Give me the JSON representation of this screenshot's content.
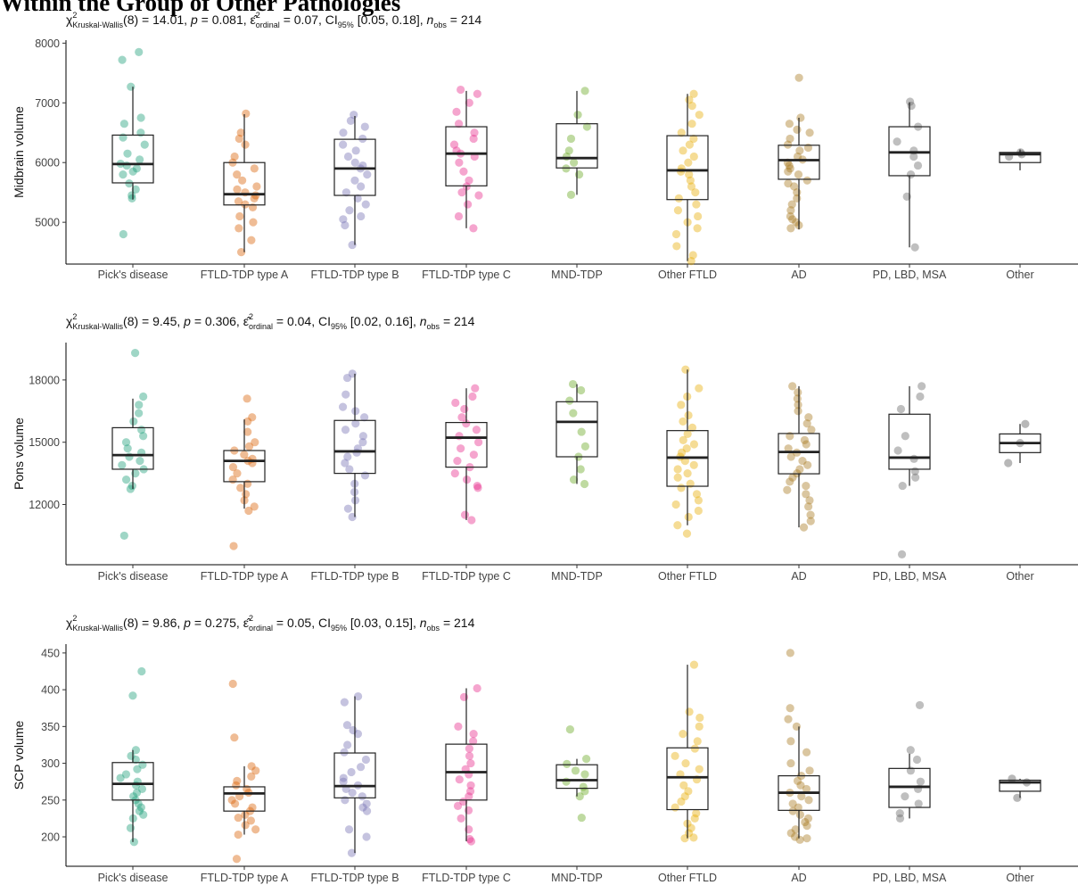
{
  "figure": {
    "title": "Within the Group of Other Pathologies"
  },
  "chart_data": [
    {
      "type": "box",
      "ylabel": "Midbrain volume",
      "ylim": [
        4300,
        8050
      ],
      "yticks": [
        5000,
        6000,
        7000,
        8000
      ],
      "subtitle": {
        "chi_base": "χ",
        "chi_sup": "2",
        "chi_sub": "Kruskal-Wallis",
        "dof_text": "(8) = 14.01, ",
        "p_symbol": "p",
        "p_text": " = 0.081, ",
        "eps_symbol": "ε̂",
        "eps_sup": "2",
        "eps_sub": "ordinal",
        "eps_text": " = 0.07, CI",
        "ci_sub": "95%",
        "ci_text": " [0.05, 0.18], ",
        "n_symbol": "n",
        "n_sub": "obs",
        "n_text": " = 214"
      },
      "categories": [
        "Pick's disease",
        "FTLD-TDP type A",
        "FTLD-TDP type B",
        "FTLD-TDP type C",
        "MND-TDP",
        "Other FTLD",
        "AD",
        "PD, LBD, MSA",
        "Other"
      ],
      "colors": [
        "#1b9e77",
        "#d95f02",
        "#7570b3",
        "#e7298a",
        "#66a61e",
        "#e6ab02",
        "#a6761d",
        "#666666",
        "#555555"
      ],
      "boxes": [
        {
          "q1": 5660,
          "median": 5975,
          "q3": 6460,
          "whisker_low": 5380,
          "whisker_high": 7270
        },
        {
          "q1": 5290,
          "median": 5470,
          "q3": 6000,
          "whisker_low": 4500,
          "whisker_high": 6810
        },
        {
          "q1": 5450,
          "median": 5900,
          "q3": 6390,
          "whisker_low": 4620,
          "whisker_high": 6780
        },
        {
          "q1": 5610,
          "median": 6150,
          "q3": 6600,
          "whisker_low": 4900,
          "whisker_high": 7200
        },
        {
          "q1": 5910,
          "median": 6075,
          "q3": 6650,
          "whisker_low": 5460,
          "whisker_high": 7200
        },
        {
          "q1": 5380,
          "median": 5870,
          "q3": 6450,
          "whisker_low": 4350,
          "whisker_high": 7150
        },
        {
          "q1": 5720,
          "median": 6040,
          "q3": 6290,
          "whisker_low": 4880,
          "whisker_high": 6750
        },
        {
          "q1": 5780,
          "median": 6170,
          "q3": 6600,
          "whisker_low": 4580,
          "whisker_high": 7010
        },
        {
          "q1": 6000,
          "median": 6140,
          "q3": 6170,
          "whisker_low": 5870,
          "whisker_high": 6220
        }
      ],
      "points": [
        [
          7850,
          7720,
          7270,
          6750,
          6650,
          6500,
          6420,
          6300,
          6150,
          6050,
          5980,
          5950,
          5900,
          5850,
          5800,
          5650,
          5550,
          5450,
          5400,
          4800
        ],
        [
          6820,
          6500,
          6400,
          6300,
          6100,
          6000,
          5900,
          5800,
          5700,
          5600,
          5550,
          5500,
          5450,
          5400,
          5350,
          5300,
          5250,
          5100,
          5000,
          4900,
          4700,
          4500
        ],
        [
          6800,
          6700,
          6600,
          6500,
          6400,
          6300,
          6200,
          6100,
          6000,
          5950,
          5900,
          5800,
          5700,
          5600,
          5500,
          5400,
          5300,
          5200,
          5100,
          5050,
          4950,
          4620
        ],
        [
          7220,
          7150,
          7000,
          6850,
          6650,
          6500,
          6400,
          6300,
          6200,
          6150,
          6100,
          6000,
          5850,
          5700,
          5600,
          5500,
          5450,
          5300,
          5100,
          4900
        ],
        [
          7200,
          6800,
          6600,
          6400,
          6200,
          6100,
          6000,
          5900,
          5800,
          5460
        ],
        [
          7150,
          7050,
          6950,
          6800,
          6650,
          6500,
          6400,
          6300,
          6200,
          6100,
          6000,
          5900,
          5850,
          5800,
          5700,
          5600,
          5500,
          5400,
          5300,
          5200,
          5100,
          5000,
          4900,
          4800,
          4600,
          4450,
          4350
        ],
        [
          7420,
          6750,
          6650,
          6550,
          6500,
          6400,
          6300,
          6250,
          6200,
          6100,
          6050,
          6000,
          5950,
          5900,
          5850,
          5800,
          5700,
          5650,
          5600,
          5500,
          5400,
          5300,
          5200,
          5100,
          5050,
          5000,
          4950,
          4900
        ],
        [
          7020,
          6950,
          6600,
          6350,
          6200,
          6100,
          5950,
          5800,
          5430,
          4580
        ],
        [
          6170,
          6140,
          6100
        ]
      ]
    },
    {
      "type": "box",
      "ylabel": "Pons volume",
      "ylim": [
        9100,
        19800
      ],
      "yticks": [
        12000,
        15000,
        18000
      ],
      "subtitle": {
        "chi_base": "χ",
        "chi_sup": "2",
        "chi_sub": "Kruskal-Wallis",
        "dof_text": "(8) = 9.45, ",
        "p_symbol": "p",
        "p_text": " = 0.306, ",
        "eps_symbol": "ε̂",
        "eps_sup": "2",
        "eps_sub": "ordinal",
        "eps_text": " = 0.04, CI",
        "ci_sub": "95%",
        "ci_text": " [0.02, 0.16], ",
        "n_symbol": "n",
        "n_sub": "obs",
        "n_text": " = 214"
      },
      "categories": [
        "Pick's disease",
        "FTLD-TDP type A",
        "FTLD-TDP type B",
        "FTLD-TDP type C",
        "MND-TDP",
        "Other FTLD",
        "AD",
        "PD, LBD, MSA",
        "Other"
      ],
      "colors": [
        "#1b9e77",
        "#d95f02",
        "#7570b3",
        "#e7298a",
        "#66a61e",
        "#e6ab02",
        "#a6761d",
        "#666666",
        "#555555"
      ],
      "boxes": [
        {
          "q1": 13700,
          "median": 14380,
          "q3": 15700,
          "whisker_low": 12750,
          "whisker_high": 17100
        },
        {
          "q1": 13100,
          "median": 14100,
          "q3": 14600,
          "whisker_low": 11800,
          "whisker_high": 16100
        },
        {
          "q1": 13500,
          "median": 14560,
          "q3": 16050,
          "whisker_low": 11400,
          "whisker_high": 18300
        },
        {
          "q1": 13800,
          "median": 15220,
          "q3": 15950,
          "whisker_low": 11250,
          "whisker_high": 17600
        },
        {
          "q1": 14300,
          "median": 15980,
          "q3": 16950,
          "whisker_low": 12990,
          "whisker_high": 17800
        },
        {
          "q1": 12880,
          "median": 14260,
          "q3": 15560,
          "whisker_low": 11000,
          "whisker_high": 18500
        },
        {
          "q1": 13480,
          "median": 14530,
          "q3": 15420,
          "whisker_low": 10900,
          "whisker_high": 17700
        },
        {
          "q1": 13700,
          "median": 14260,
          "q3": 16350,
          "whisker_low": 12900,
          "whisker_high": 17700
        },
        {
          "q1": 14500,
          "median": 14960,
          "q3": 15400,
          "whisker_low": 14000,
          "whisker_high": 15880
        }
      ],
      "points": [
        [
          19300,
          17200,
          16800,
          16400,
          16000,
          15600,
          15300,
          15000,
          14700,
          14500,
          14300,
          14100,
          13900,
          13700,
          13500,
          13200,
          12900,
          12750,
          10500
        ],
        [
          17100,
          16200,
          16000,
          15500,
          15000,
          14800,
          14600,
          14400,
          14200,
          14100,
          14000,
          13800,
          13500,
          13200,
          13000,
          12800,
          12500,
          12200,
          11900,
          11700,
          10000
        ],
        [
          18300,
          18100,
          17300,
          16700,
          16500,
          16200,
          15900,
          15600,
          15300,
          15000,
          14700,
          14500,
          14300,
          14000,
          13700,
          13400,
          13000,
          12600,
          12200,
          11800,
          11400
        ],
        [
          17600,
          17200,
          16900,
          16600,
          16200,
          15900,
          15600,
          15300,
          15000,
          14700,
          14400,
          14100,
          13800,
          13500,
          13200,
          12900,
          12800,
          11500,
          11250
        ],
        [
          17800,
          17500,
          17000,
          16400,
          15500,
          14800,
          14300,
          13700,
          13200,
          12990
        ],
        [
          18500,
          17600,
          17200,
          16800,
          16300,
          16000,
          15700,
          15400,
          15100,
          14900,
          14700,
          14500,
          14300,
          14100,
          13900,
          13700,
          13500,
          13300,
          13000,
          12800,
          12500,
          12200,
          12000,
          11700,
          11400,
          11000,
          10600
        ],
        [
          17700,
          17400,
          17100,
          16800,
          16500,
          16200,
          15900,
          15600,
          15300,
          15100,
          14900,
          14700,
          14500,
          14300,
          14100,
          13900,
          13700,
          13500,
          13300,
          13100,
          12900,
          12700,
          12500,
          12200,
          11900,
          11500,
          11200,
          10900
        ],
        [
          17700,
          17200,
          16600,
          15300,
          14600,
          14200,
          13600,
          13300,
          12900,
          9600
        ],
        [
          15880,
          14960,
          14000
        ]
      ]
    },
    {
      "type": "box",
      "ylabel": "SCP volume",
      "ylim": [
        160,
        462
      ],
      "yticks": [
        200,
        250,
        300,
        350,
        400,
        450
      ],
      "subtitle": {
        "chi_base": "χ",
        "chi_sup": "2",
        "chi_sub": "Kruskal-Wallis",
        "dof_text": "(8) = 9.86, ",
        "p_symbol": "p",
        "p_text": " = 0.275, ",
        "eps_symbol": "ε̂",
        "eps_sup": "2",
        "eps_sub": "ordinal",
        "eps_text": " = 0.05, CI",
        "ci_sub": "95%",
        "ci_text": " [0.03, 0.15], ",
        "n_symbol": "n",
        "n_sub": "obs",
        "n_text": " = 214"
      },
      "categories": [
        "Pick's disease",
        "FTLD-TDP type A",
        "FTLD-TDP type B",
        "FTLD-TDP type C",
        "MND-TDP",
        "Other FTLD",
        "AD",
        "PD, LBD, MSA",
        "Other"
      ],
      "colors": [
        "#1b9e77",
        "#d95f02",
        "#7570b3",
        "#e7298a",
        "#66a61e",
        "#e6ab02",
        "#a6761d",
        "#666666",
        "#555555"
      ],
      "boxes": [
        {
          "q1": 250,
          "median": 272,
          "q3": 301,
          "whisker_low": 193,
          "whisker_high": 318
        },
        {
          "q1": 235,
          "median": 259,
          "q3": 268,
          "whisker_low": 203,
          "whisker_high": 296
        },
        {
          "q1": 253,
          "median": 269,
          "q3": 314,
          "whisker_low": 178,
          "whisker_high": 391
        },
        {
          "q1": 250,
          "median": 288,
          "q3": 326,
          "whisker_low": 194,
          "whisker_high": 402
        },
        {
          "q1": 266,
          "median": 277,
          "q3": 298,
          "whisker_low": 255,
          "whisker_high": 306
        },
        {
          "q1": 237,
          "median": 281,
          "q3": 321,
          "whisker_low": 198,
          "whisker_high": 434
        },
        {
          "q1": 236,
          "median": 260,
          "q3": 283,
          "whisker_low": 198,
          "whisker_high": 350
        },
        {
          "q1": 240,
          "median": 268,
          "q3": 293,
          "whisker_low": 225,
          "whisker_high": 313
        },
        {
          "q1": 262,
          "median": 274,
          "q3": 277,
          "whisker_low": 253,
          "whisker_high": 279
        }
      ],
      "points": [
        [
          425,
          392,
          318,
          310,
          305,
          298,
          292,
          285,
          280,
          275,
          270,
          265,
          260,
          255,
          250,
          245,
          240,
          235,
          230,
          225,
          212,
          193
        ],
        [
          408,
          335,
          296,
          290,
          282,
          276,
          270,
          265,
          260,
          255,
          250,
          245,
          240,
          235,
          230,
          226,
          222,
          216,
          210,
          203,
          170
        ],
        [
          391,
          383,
          352,
          345,
          340,
          325,
          315,
          305,
          295,
          288,
          280,
          275,
          270,
          265,
          260,
          255,
          250,
          245,
          240,
          235,
          210,
          200,
          178
        ],
        [
          402,
          390,
          350,
          340,
          330,
          320,
          310,
          300,
          292,
          285,
          278,
          270,
          262,
          255,
          248,
          242,
          236,
          225,
          210,
          197,
          194
        ],
        [
          346,
          306,
          299,
          290,
          285,
          275,
          268,
          262,
          255,
          226
        ],
        [
          434,
          370,
          362,
          350,
          340,
          330,
          320,
          310,
          300,
          292,
          285,
          278,
          270,
          262,
          255,
          248,
          240,
          232,
          225,
          218,
          212,
          205,
          199,
          198
        ],
        [
          450,
          375,
          360,
          350,
          330,
          315,
          300,
          290,
          283,
          276,
          270,
          265,
          260,
          255,
          250,
          245,
          240,
          235,
          230,
          225,
          220,
          215,
          210,
          205,
          200,
          198,
          196
        ],
        [
          379,
          318,
          305,
          290,
          275,
          265,
          255,
          245,
          232,
          225
        ],
        [
          279,
          274,
          253
        ]
      ]
    }
  ]
}
